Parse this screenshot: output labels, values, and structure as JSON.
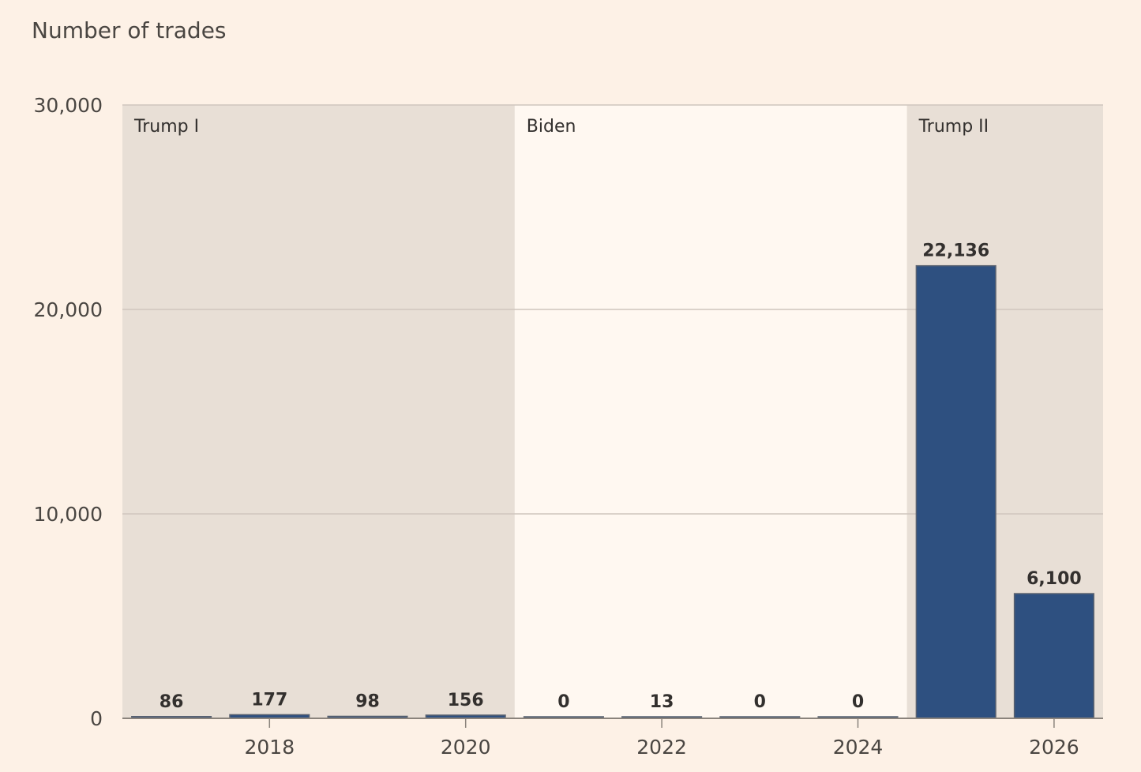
{
  "chart_data": {
    "type": "bar",
    "title": "Number of trades",
    "xlabel": "",
    "ylabel": "",
    "categories": [
      "2017",
      "2018",
      "2019",
      "2020",
      "2021",
      "2022",
      "2023",
      "2024",
      "2025",
      "2026"
    ],
    "values": [
      86,
      177,
      98,
      156,
      0,
      13,
      0,
      0,
      22136,
      6100
    ],
    "data_labels": [
      "86",
      "177",
      "98",
      "156",
      "0",
      "13",
      "0",
      "0",
      "22,136",
      "6,100"
    ],
    "ylim": [
      0,
      30000
    ],
    "y_ticks": [
      {
        "value": 0,
        "label": "0"
      },
      {
        "value": 10000,
        "label": "10,000"
      },
      {
        "value": 20000,
        "label": "20,000"
      },
      {
        "value": 30000,
        "label": "30,000"
      }
    ],
    "x_ticks": [
      "2018",
      "2020",
      "2022",
      "2024",
      "2026"
    ],
    "periods": [
      {
        "label": "Trump I",
        "from": "2017",
        "to": "2020",
        "shaded": true
      },
      {
        "label": "Biden",
        "from": "2021",
        "to": "2024",
        "shaded": false
      },
      {
        "label": "Trump II",
        "from": "2025",
        "to": "2026",
        "shaded": true
      }
    ],
    "grid": true,
    "colors": {
      "bar": "#2e5080",
      "bar_edge": "#5a6270",
      "shade": "#e8dfd6",
      "plot_bg": "#fff8f1",
      "gridline": "#cfc6bd",
      "axis": "#8a837c"
    }
  }
}
